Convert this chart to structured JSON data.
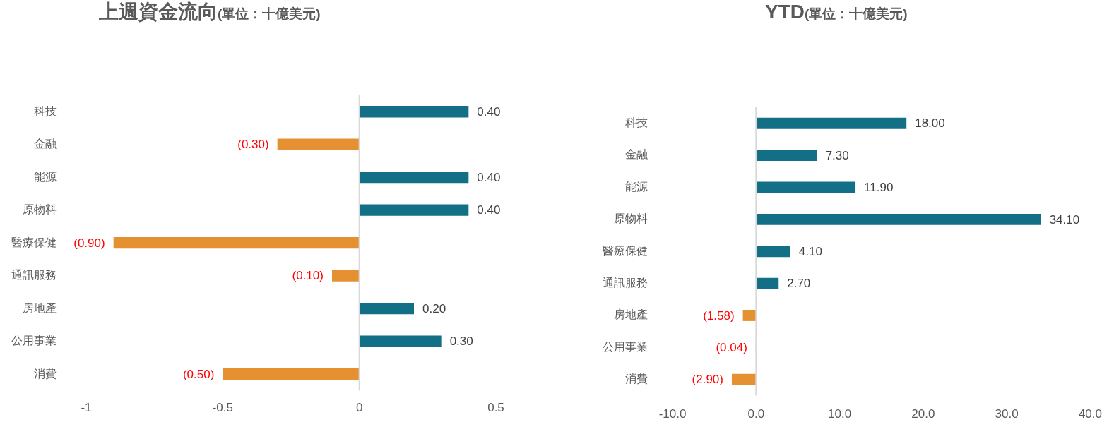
{
  "chart_data": [
    {
      "type": "bar",
      "orientation": "horizontal",
      "title": "上週資金流向",
      "subtitle": "(單位：十億美元)",
      "categories": [
        "科技",
        "金融",
        "能源",
        "原物料",
        "醫療保健",
        "通訊服務",
        "房地產",
        "公用事業",
        "消費"
      ],
      "values": [
        0.4,
        -0.3,
        0.4,
        0.4,
        -0.9,
        -0.1,
        0.2,
        0.3,
        -0.5
      ],
      "colors": [
        "#126f86",
        "#e69131",
        "#126f86",
        "#126f86",
        "#e69131",
        "#e69131",
        "#126f86",
        "#126f86",
        "#e69131"
      ],
      "value_labels": [
        "0.40",
        "(0.30)",
        "0.40",
        "0.40",
        "(0.90)",
        "(0.10)",
        "0.20",
        "0.30",
        "(0.50)"
      ],
      "xlim": [
        -1,
        0.5
      ],
      "xticks": [
        -1,
        -0.5,
        0,
        0.5
      ]
    },
    {
      "type": "bar",
      "orientation": "horizontal",
      "title": "YTD",
      "subtitle": "(單位：十億美元)",
      "categories": [
        "科技",
        "金融",
        "能源",
        "原物料",
        "醫療保健",
        "通訊服務",
        "房地產",
        "公用事業",
        "消費"
      ],
      "values": [
        18.0,
        7.3,
        11.9,
        34.1,
        4.1,
        2.7,
        -1.58,
        -0.04,
        -2.9
      ],
      "colors": [
        "#126f86",
        "#126f86",
        "#126f86",
        "#126f86",
        "#126f86",
        "#126f86",
        "#e69131",
        "#e69131",
        "#e69131"
      ],
      "value_labels": [
        "18.00",
        "7.30",
        "11.90",
        "34.10",
        "4.10",
        "2.70",
        "(1.58)",
        "(0.04)",
        "(2.90)"
      ],
      "xlim": [
        -10,
        40
      ],
      "xticks": [
        {
          "value": -10,
          "label": "-10.0"
        },
        {
          "value": 0,
          "label": "0.0"
        },
        {
          "value": 10,
          "label": "10.0"
        },
        {
          "value": 20,
          "label": "20.0"
        },
        {
          "value": 30,
          "label": "30.0"
        },
        {
          "value": 40,
          "label": "40.0"
        }
      ]
    }
  ]
}
